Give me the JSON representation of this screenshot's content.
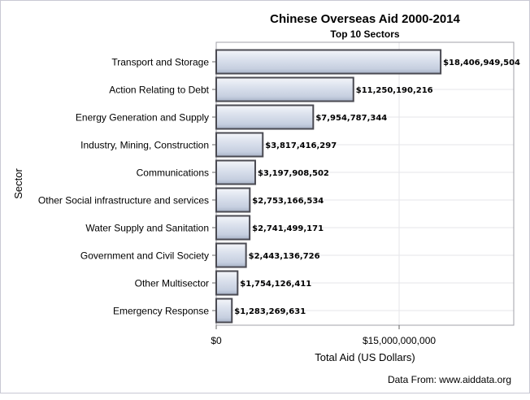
{
  "chart_data": {
    "type": "bar",
    "orientation": "horizontal",
    "title": "Chinese Overseas Aid 2000-2014",
    "subtitle": "Top 10 Sectors",
    "xlabel": "Total Aid (US Dollars)",
    "ylabel": "Sector",
    "footnote": "Data From: www.aiddata.org",
    "xlim": [
      0,
      24400000000
    ],
    "x_ticks": [
      0,
      15000000000
    ],
    "x_tick_labels": [
      "$0",
      "$15,000,000,000"
    ],
    "grid": true,
    "bar_color": "#cdd5e4",
    "bar_edge_color": "#4a4a52",
    "categories": [
      "Transport and Storage",
      "Action Relating to Debt",
      "Energy Generation and Supply",
      "Industry, Mining, Construction",
      "Communications",
      "Other Social infrastructure and services",
      "Water Supply and Sanitation",
      "Government and Civil Society",
      "Other Multisector",
      "Emergency Response"
    ],
    "values": [
      18406949504,
      11250190216,
      7954787344,
      3817416297,
      3197908502,
      2753166534,
      2741499171,
      2443136726,
      1754126411,
      1283269631
    ],
    "data_labels": [
      "$18,406,949,504",
      "$11,250,190,216",
      "$7,954,787,344",
      "$3,817,416,297",
      "$3,197,908,502",
      "$2,753,166,534",
      "$2,741,499,171",
      "$2,443,136,726",
      "$1,754,126,411",
      "$1,283,269,631"
    ]
  }
}
